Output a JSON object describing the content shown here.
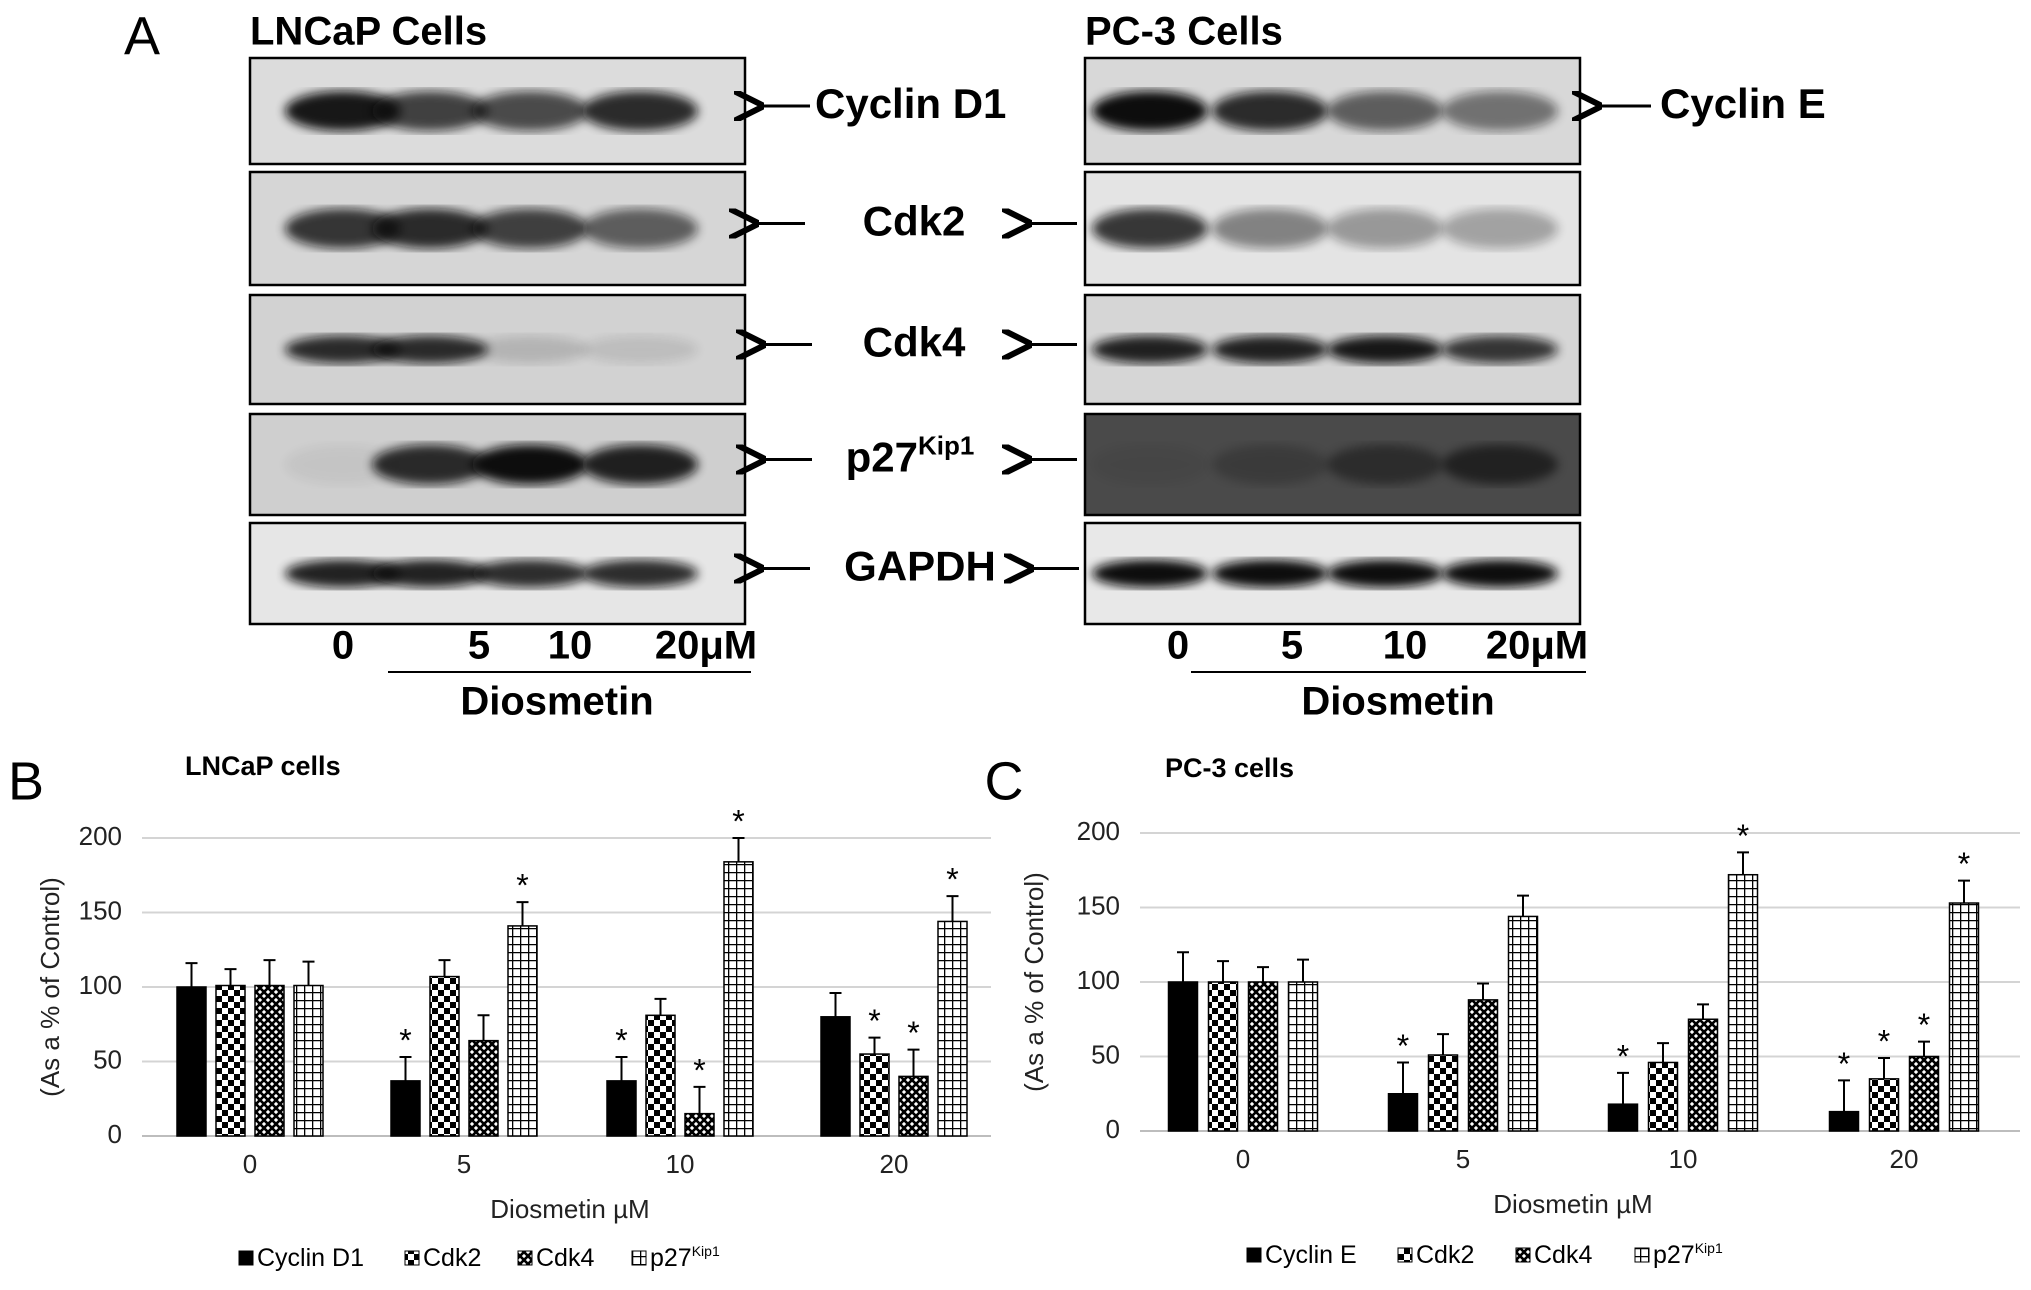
{
  "panel_A": {
    "label": "A",
    "blots": [
      {
        "title": "LNCaP Cells",
        "proteins": [
          {
            "name": "Cyclin D1"
          },
          {
            "name": "Cdk2"
          },
          {
            "name": "Cdk4"
          },
          {
            "name": "p27",
            "superscript": "Kip1"
          },
          {
            "name": "GAPDH"
          }
        ],
        "lanes": [
          "0",
          "5",
          "10",
          "20μM"
        ],
        "treatment": "Diosmetin"
      },
      {
        "title": "PC-3 Cells",
        "proteins": [
          {
            "name": "Cyclin E"
          },
          {
            "name": "Cdk2"
          },
          {
            "name": "Cdk4"
          },
          {
            "name": "p27",
            "superscript": "Kip1"
          },
          {
            "name": "GAPDH"
          }
        ],
        "lanes": [
          "0",
          "5",
          "10",
          "20μM"
        ],
        "treatment": "Diosmetin"
      }
    ]
  },
  "chart_data": [
    {
      "type": "bar",
      "panel_label": "B",
      "title": "LNCaP cells",
      "xlabel": "Diosmetin µM",
      "ylabel": "(As a % of Control)",
      "categories": [
        "0",
        "5",
        "10",
        "20"
      ],
      "ylim": [
        0,
        200
      ],
      "yticks": [
        0,
        50,
        100,
        150,
        200
      ],
      "grid": true,
      "series": [
        {
          "name": "Cyclin D1",
          "color": "#000000",
          "pattern": "solid",
          "values": [
            100,
            37,
            37,
            80
          ],
          "errors": [
            16,
            16,
            16,
            16
          ],
          "stars": [
            null,
            "*",
            "*",
            null
          ]
        },
        {
          "name": "Cdk2",
          "color": "#000000",
          "pattern": "checker",
          "values": [
            101,
            107,
            81,
            55
          ],
          "errors": [
            11,
            11,
            11,
            11
          ],
          "stars": [
            null,
            null,
            null,
            "*"
          ]
        },
        {
          "name": "Cdk4",
          "color": "#000000",
          "pattern": "crosshatch",
          "values": [
            101,
            64,
            15,
            40
          ],
          "errors": [
            17,
            17,
            18,
            18
          ],
          "stars": [
            null,
            null,
            "*",
            "*"
          ]
        },
        {
          "name": "p27",
          "name_superscript": "Kip1",
          "color": "#000000",
          "pattern": "grid",
          "values": [
            101,
            141,
            184,
            144
          ],
          "errors": [
            16,
            16,
            16,
            17
          ],
          "stars": [
            null,
            "*",
            "*",
            "*"
          ]
        }
      ]
    },
    {
      "type": "bar",
      "panel_label": "C",
      "title": "PC-3 cells",
      "xlabel": "Diosmetin µM",
      "ylabel": "(As a % of Control)",
      "categories": [
        "0",
        "5",
        "10",
        "20"
      ],
      "ylim": [
        0,
        200
      ],
      "yticks": [
        0,
        50,
        100,
        150,
        200
      ],
      "grid": true,
      "series": [
        {
          "name": "Cyclin E",
          "color": "#000000",
          "pattern": "solid",
          "values": [
            100,
            25,
            18,
            13
          ],
          "errors": [
            20,
            21,
            21,
            21
          ],
          "stars": [
            null,
            "*",
            "*",
            "*"
          ]
        },
        {
          "name": "Cdk2",
          "color": "#000000",
          "pattern": "checker",
          "values": [
            100,
            51,
            46,
            35
          ],
          "errors": [
            14,
            14,
            13,
            14
          ],
          "stars": [
            null,
            null,
            null,
            "*"
          ]
        },
        {
          "name": "Cdk4",
          "color": "#000000",
          "pattern": "crosshatch",
          "values": [
            100,
            88,
            75,
            50
          ],
          "errors": [
            10,
            11,
            10,
            10
          ],
          "stars": [
            null,
            null,
            null,
            "*"
          ]
        },
        {
          "name": "p27",
          "name_superscript": "Kip1",
          "color": "#000000",
          "pattern": "grid",
          "values": [
            100,
            144,
            172,
            153
          ],
          "errors": [
            15,
            14,
            15,
            15
          ],
          "stars": [
            null,
            null,
            "*",
            "*"
          ]
        }
      ]
    }
  ]
}
